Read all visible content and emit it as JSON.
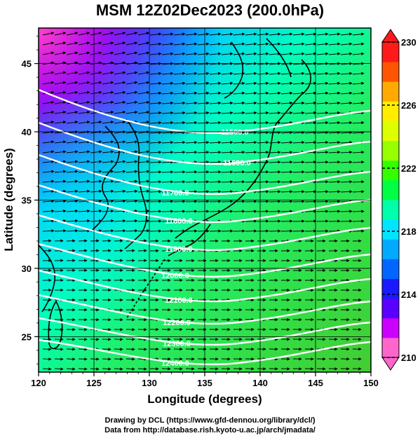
{
  "title": "MSM 12Z02Dec2023 (200.0hPa)",
  "xaxis": {
    "label": "Longitude (degrees)",
    "range": [
      120,
      150
    ],
    "ticks": [
      "120",
      "125",
      "130",
      "135",
      "140",
      "145",
      "150"
    ]
  },
  "yaxis": {
    "label": "Latitude  (degrees)",
    "range": [
      22.4,
      47.6
    ],
    "ticks": [
      "25",
      "30",
      "35",
      "40",
      "45"
    ]
  },
  "colorbar": {
    "range": [
      210,
      230
    ],
    "ticks": [
      "210",
      "214",
      "218",
      "222",
      "226",
      "230"
    ],
    "colors": [
      "#ff66cc",
      "#cc00ff",
      "#5a00ff",
      "#1a1aff",
      "#0066ff",
      "#00aaff",
      "#00e5ff",
      "#00ffaa",
      "#00ff44",
      "#33ff00",
      "#99ff00",
      "#ddff00",
      "#ffee00",
      "#ffaa00",
      "#ff5500",
      "#ff1a1a"
    ]
  },
  "contours": [
    {
      "label": "11500.0"
    },
    {
      "label": "11600.0"
    },
    {
      "label": "11700.0"
    },
    {
      "label": "11800.0"
    },
    {
      "label": "11900.0"
    },
    {
      "label": "12000.0"
    },
    {
      "label": "12100.0"
    },
    {
      "label": "12200.0"
    },
    {
      "label": "12300.0"
    },
    {
      "label": "12400.0"
    }
  ],
  "credits": {
    "line1": "Drawing by DCL (https://www.gfd-dennou.org/library/dcl/)",
    "line2": "Data from http://database.rish.kyoto-u.ac.jp/arch/jmadata/"
  }
}
